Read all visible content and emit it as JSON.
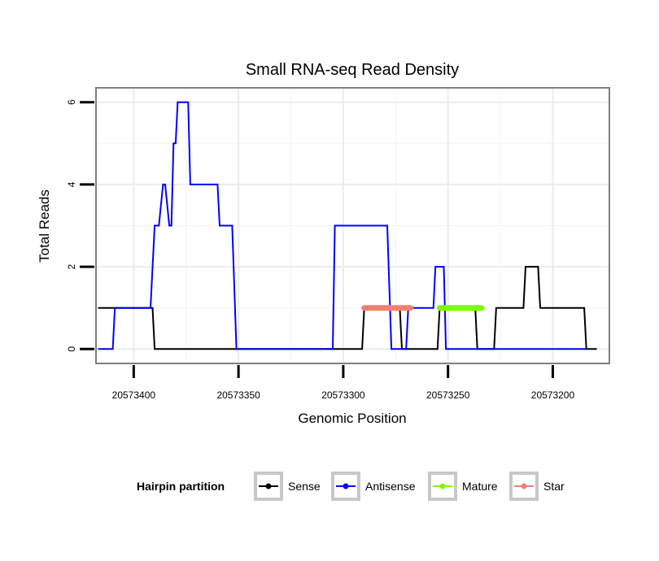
{
  "chart_data": {
    "type": "line",
    "title": "Small RNA-seq Read Density",
    "xlabel": "Genomic Position",
    "ylabel": "Total Reads",
    "x_reversed": true,
    "xlim": [
      20573418,
      20573173
    ],
    "ylim": [
      -0.35,
      6.35
    ],
    "x_ticks": [
      20573400,
      20573350,
      20573300,
      20573250,
      20573200
    ],
    "x_tick_labels": [
      "20573400",
      "20573350",
      "20573300",
      "20573250",
      "20573200"
    ],
    "y_ticks": [
      0,
      2,
      4,
      6
    ],
    "y_tick_labels": [
      "0",
      "2",
      "4",
      "6"
    ],
    "grid": true,
    "legend": {
      "title": "Hairpin partition",
      "position": "bottom",
      "entries": [
        {
          "name": "Sense",
          "color": "#000000"
        },
        {
          "name": "Antisense",
          "color": "#0000ff"
        },
        {
          "name": "Mature",
          "color": "#7cfc00"
        },
        {
          "name": "Star",
          "color": "#f08070"
        }
      ]
    },
    "series": [
      {
        "name": "Sense",
        "color": "#000000",
        "x": [
          20573417,
          20573391,
          20573390,
          20573291,
          20573290,
          20573281,
          20573280,
          20573273,
          20573272,
          20573255,
          20573254,
          20573237,
          20573236,
          20573228,
          20573227,
          20573214,
          20573213,
          20573207,
          20573206,
          20573201,
          20573200,
          20573185,
          20573184,
          20573179
        ],
        "y": [
          1,
          1,
          0,
          0,
          1,
          1,
          1,
          1,
          0,
          0,
          1,
          1,
          0,
          0,
          1,
          1,
          2,
          2,
          1,
          1,
          1,
          1,
          0,
          0
        ]
      },
      {
        "name": "Antisense",
        "color": "#0000ff",
        "x": [
          20573417,
          20573410,
          20573409,
          20573392,
          20573390,
          20573388,
          20573386,
          20573385,
          20573383,
          20573382,
          20573381,
          20573380,
          20573379,
          20573378,
          20573377,
          20573374,
          20573373,
          20573368,
          20573367,
          20573360,
          20573359,
          20573353,
          20573351,
          20573305,
          20573304,
          20573279,
          20573277,
          20573270,
          20573269,
          20573261,
          20573257,
          20573256,
          20573252,
          20573251,
          20573184
        ],
        "y": [
          0,
          0,
          1,
          1,
          3,
          3,
          4,
          4,
          3,
          3,
          5,
          5,
          6,
          6,
          6,
          6,
          4,
          4,
          4,
          4,
          3,
          3,
          0,
          0,
          3,
          3,
          0,
          0,
          1,
          1,
          1,
          2,
          2,
          0,
          0
        ]
      },
      {
        "name": "Star",
        "color": "#f08070",
        "x": [
          20573290,
          20573268
        ],
        "y": [
          1,
          1
        ]
      },
      {
        "name": "Mature",
        "color": "#7cfc00",
        "x": [
          20573254,
          20573234
        ],
        "y": [
          1,
          1
        ]
      }
    ]
  }
}
